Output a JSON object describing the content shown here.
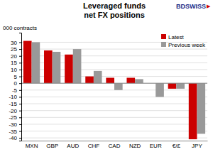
{
  "chart_data": {
    "type": "bar",
    "title": "Leveraged funds\nnet FX positions",
    "y_label": "000 contracts",
    "categories": [
      "MXN",
      "GBP",
      "AUD",
      "CHF",
      "CAD",
      "NZD",
      "EUR",
      "€/£",
      "JPY"
    ],
    "series": [
      {
        "name": "Latest",
        "color": "#cc0000",
        "values": [
          31,
          24,
          21,
          5,
          4,
          4,
          0,
          -4,
          -41
        ]
      },
      {
        "name": "Previous week",
        "color": "#999999",
        "values": [
          30,
          23,
          25,
          9,
          -5,
          3,
          -10,
          -4,
          -37
        ]
      }
    ],
    "ylim": [
      -42,
      37
    ],
    "yticks": [
      -40,
      -35,
      -30,
      -25,
      -20,
      -15,
      -10,
      -5,
      0,
      5,
      10,
      15,
      20,
      25,
      30
    ],
    "grid": true,
    "legend": "upper right",
    "annotations": [
      {
        "text": "BDSWISS",
        "color": "#1a2d8a"
      },
      {
        "text": "▶",
        "color": "#cc0000"
      }
    ]
  }
}
